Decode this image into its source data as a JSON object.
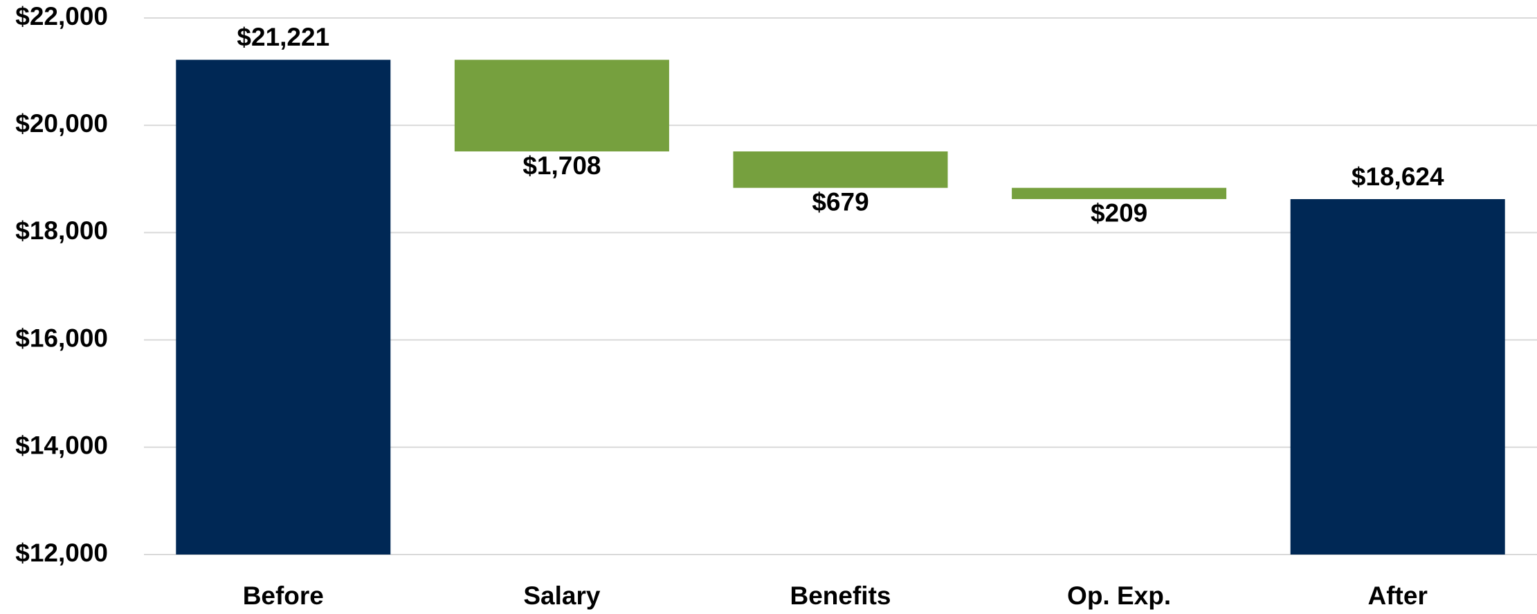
{
  "chart_data": {
    "type": "waterfall",
    "categories": [
      "Before",
      "Salary",
      "Benefits",
      "Op. Exp.",
      "After"
    ],
    "values": [
      21221,
      1708,
      679,
      209,
      18624
    ],
    "value_labels": [
      "$21,221",
      "$1,708",
      "$679",
      "$209",
      "$18,624"
    ],
    "measures": [
      "total",
      "decrease",
      "decrease",
      "decrease",
      "total"
    ],
    "colors": [
      "#002855",
      "#76a03e",
      "#76a03e",
      "#76a03e",
      "#002855"
    ],
    "ylim": [
      12000,
      22000
    ],
    "yticks": [
      {
        "value": 12000,
        "label": "$12,000"
      },
      {
        "value": 14000,
        "label": "$14,000"
      },
      {
        "value": 16000,
        "label": "$16,000"
      },
      {
        "value": 18000,
        "label": "$18,000"
      },
      {
        "value": 20000,
        "label": "$20,000"
      },
      {
        "value": 22000,
        "label": "$22,000"
      }
    ],
    "grid": true
  }
}
